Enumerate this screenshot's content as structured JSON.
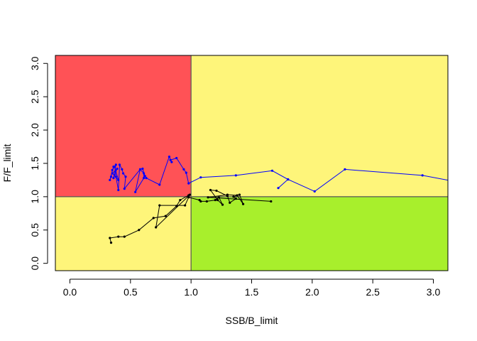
{
  "chart_data": {
    "type": "scatter",
    "title": "",
    "xlabel": "SSB/B_limit",
    "ylabel": "F/F_limit",
    "xlim": [
      -0.12,
      3.12
    ],
    "ylim": [
      -0.11,
      3.12
    ],
    "x_ticks": [
      0.0,
      0.5,
      1.0,
      1.5,
      2.0,
      2.5,
      3.0
    ],
    "x_tick_labels": [
      "0.0",
      "0.5",
      "1.0",
      "1.5",
      "2.0",
      "2.5",
      "3.0"
    ],
    "y_ticks": [
      0.0,
      0.5,
      1.0,
      1.5,
      2.0,
      2.5,
      3.0
    ],
    "y_tick_labels": [
      "0.0",
      "0.5",
      "1.0",
      "1.5",
      "2.0",
      "2.5",
      "3.0"
    ],
    "reference_lines": {
      "x": 1.0,
      "y": 1.0
    },
    "quadrants": [
      {
        "name": "overfished-overfishing",
        "x": [
          -0.12,
          1.0
        ],
        "y": [
          1.0,
          3.12
        ],
        "color": "#ff5256"
      },
      {
        "name": "healthy-overfishing",
        "x": [
          1.0,
          3.12
        ],
        "y": [
          1.0,
          3.12
        ],
        "color": "#fef57a"
      },
      {
        "name": "overfished-healthy",
        "x": [
          -0.12,
          1.0
        ],
        "y": [
          -0.11,
          1.0
        ],
        "color": "#fef57a"
      },
      {
        "name": "healthy",
        "x": [
          1.0,
          3.12
        ],
        "y": [
          -0.11,
          1.0
        ],
        "color": "#a8ef2c"
      }
    ],
    "grid": false,
    "legend": "none",
    "series": [
      {
        "color": "#0000ff",
        "points": [
          [
            3.2,
            1.22
          ],
          [
            2.91,
            1.32
          ],
          [
            2.27,
            1.41
          ],
          [
            2.02,
            1.08
          ],
          [
            1.8,
            1.26
          ],
          [
            1.72,
            1.13
          ],
          [
            1.8,
            1.26
          ],
          [
            1.67,
            1.39
          ],
          [
            1.37,
            1.32
          ],
          [
            1.08,
            1.29
          ],
          [
            0.98,
            1.2
          ],
          [
            0.96,
            1.36
          ],
          [
            0.94,
            1.41
          ],
          [
            0.88,
            1.58
          ],
          [
            0.83,
            1.55
          ],
          [
            0.84,
            1.52
          ],
          [
            0.82,
            1.6
          ],
          [
            0.74,
            1.18
          ],
          [
            0.63,
            1.28
          ],
          [
            0.62,
            1.31
          ],
          [
            0.6,
            1.42
          ],
          [
            0.58,
            1.41
          ],
          [
            0.54,
            1.07
          ],
          [
            0.61,
            1.28
          ],
          [
            0.61,
            1.35
          ],
          [
            0.58,
            1.41
          ],
          [
            0.45,
            1.12
          ],
          [
            0.46,
            1.3
          ],
          [
            0.44,
            1.35
          ],
          [
            0.43,
            1.41
          ],
          [
            0.41,
            1.48
          ],
          [
            0.4,
            1.1
          ],
          [
            0.38,
            1.3
          ],
          [
            0.37,
            1.45
          ],
          [
            0.4,
            1.25
          ],
          [
            0.35,
            1.35
          ],
          [
            0.39,
            1.42
          ],
          [
            0.36,
            1.28
          ],
          [
            0.38,
            1.48
          ],
          [
            0.35,
            1.4
          ],
          [
            0.34,
            1.3
          ],
          [
            0.33,
            1.25
          ],
          [
            0.36,
            1.45
          ]
        ]
      },
      {
        "color": "#000000",
        "points": [
          [
            0.34,
            0.31
          ],
          [
            0.33,
            0.38
          ],
          [
            0.4,
            0.4
          ],
          [
            0.45,
            0.4
          ],
          [
            0.57,
            0.5
          ],
          [
            0.69,
            0.68
          ],
          [
            0.79,
            0.71
          ],
          [
            0.88,
            0.86
          ],
          [
            0.91,
            0.95
          ],
          [
            0.98,
            1.02
          ],
          [
            0.99,
            1.03
          ],
          [
            0.71,
            0.54
          ],
          [
            0.74,
            0.87
          ],
          [
            0.95,
            0.87
          ],
          [
            0.98,
            0.99
          ],
          [
            1.07,
            0.95
          ],
          [
            1.08,
            0.93
          ],
          [
            1.13,
            0.93
          ],
          [
            1.2,
            0.95
          ],
          [
            1.23,
            0.99
          ],
          [
            1.26,
            0.88
          ],
          [
            1.22,
            0.95
          ],
          [
            1.16,
            1.1
          ],
          [
            1.21,
            1.09
          ],
          [
            1.3,
            1.01
          ],
          [
            1.32,
            0.91
          ],
          [
            1.37,
            0.97
          ],
          [
            1.35,
            1.0
          ],
          [
            1.4,
            1.03
          ],
          [
            1.43,
            0.89
          ],
          [
            1.38,
            1.02
          ],
          [
            1.3,
            1.03
          ],
          [
            1.14,
            0.99
          ],
          [
            1.66,
            0.93
          ]
        ]
      }
    ]
  }
}
